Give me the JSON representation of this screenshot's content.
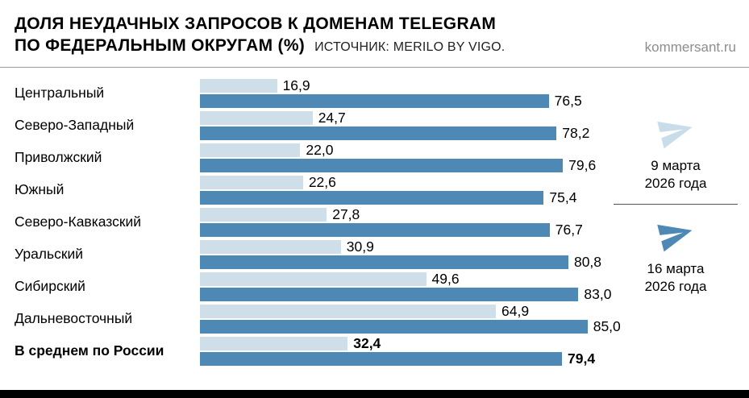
{
  "header": {
    "title_line1": "ДОЛЯ НЕУДАЧНЫХ ЗАПРОСОВ К ДОМЕНАМ TELEGRAM",
    "title_line2": "ПО ФЕДЕРАЛЬНЫМ ОКРУГАМ (%)",
    "source": "ИСТОЧНИК: MERILO BY VIGO.",
    "site": "kommersant.ru"
  },
  "legend": {
    "series1": {
      "label_line1": "9 марта",
      "label_line2": "2026 года",
      "color": "#c9dcea"
    },
    "series2": {
      "label_line1": "16 марта",
      "label_line2": "2026 года",
      "color": "#4e88b5"
    }
  },
  "colors": {
    "bar_light": "#cfdfea",
    "bar_dark": "#4e88b5",
    "bottom_bar": "#000000"
  },
  "chart_data": {
    "type": "bar",
    "orientation": "horizontal",
    "title": "Доля неудачных запросов к доменам Telegram по федеральным округам (%)",
    "xlabel": "",
    "ylabel": "",
    "xlim": [
      0,
      90
    ],
    "grid": false,
    "legend_position": "right",
    "categories": [
      "Центральный",
      "Северо-Западный",
      "Приволжский",
      "Южный",
      "Северо-Кавказский",
      "Уральский",
      "Сибирский",
      "Дальневосточный",
      "В среднем по России"
    ],
    "series": [
      {
        "name": "9 марта 2026 года",
        "color": "#cfdfea",
        "values": [
          16.9,
          24.7,
          22.0,
          22.6,
          27.8,
          30.9,
          49.6,
          64.9,
          32.4
        ]
      },
      {
        "name": "16 марта 2026 года",
        "color": "#4e88b5",
        "values": [
          76.5,
          78.2,
          79.6,
          75.4,
          76.7,
          80.8,
          83.0,
          85.0,
          79.4
        ]
      }
    ],
    "value_labels": [
      [
        "16,9",
        "24,7",
        "22,0",
        "22,6",
        "27,8",
        "30,9",
        "49,6",
        "64,9",
        "32,4"
      ],
      [
        "76,5",
        "78,2",
        "79,6",
        "75,4",
        "76,7",
        "80,8",
        "83,0",
        "85,0",
        "79,4"
      ]
    ],
    "bold_last_row": true
  }
}
